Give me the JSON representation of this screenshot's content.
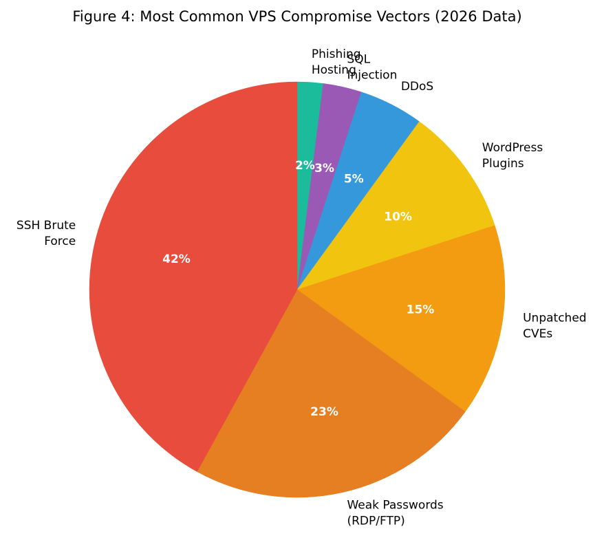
{
  "chart_data": {
    "type": "pie",
    "title": "Figure 4: Most Common VPS Compromise Vectors (2026 Data)",
    "slices": [
      {
        "label": "Phishing Hosting",
        "lines": [
          "Phishing",
          "Hosting"
        ],
        "value": 2,
        "pct_label": "2%",
        "color": "#1abc9c"
      },
      {
        "label": "SQL Injection",
        "lines": [
          "SQL",
          "Injection"
        ],
        "value": 3,
        "pct_label": "3%",
        "color": "#9b59b6"
      },
      {
        "label": "DDoS",
        "lines": [
          "DDoS"
        ],
        "value": 5,
        "pct_label": "5%",
        "color": "#3498db"
      },
      {
        "label": "WordPress Plugins",
        "lines": [
          "WordPress",
          "Plugins"
        ],
        "value": 10,
        "pct_label": "10%",
        "color": "#f1c40f"
      },
      {
        "label": "Unpatched CVEs",
        "lines": [
          "Unpatched",
          "CVEs"
        ],
        "value": 15,
        "pct_label": "15%",
        "color": "#f39c12"
      },
      {
        "label": "Weak Passwords (RDP/FTP)",
        "lines": [
          "Weak Passwords",
          "(RDP/FTP)"
        ],
        "value": 23,
        "pct_label": "23%",
        "color": "#e67e22"
      },
      {
        "label": "SSH Brute Force",
        "lines": [
          "SSH Brute",
          "Force"
        ],
        "value": 42,
        "pct_label": "42%",
        "color": "#e74c3c"
      }
    ],
    "start_angle_deg": 90,
    "direction": "clockwise"
  }
}
